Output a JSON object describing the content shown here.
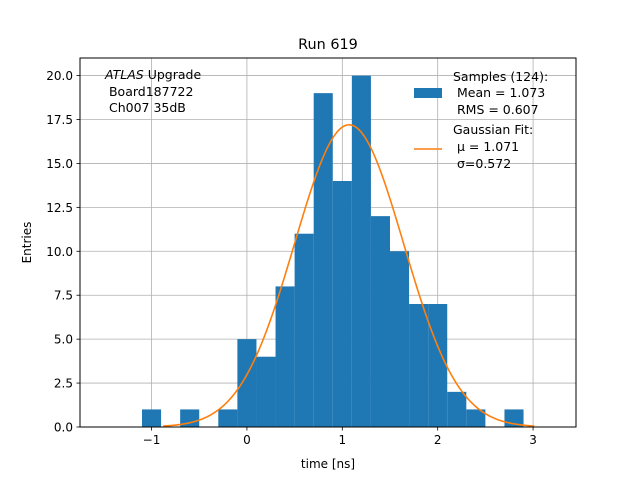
{
  "chart_data": {
    "type": "bar",
    "title": "Run 619",
    "xlabel": "time [ns]",
    "ylabel": "Entries",
    "xlim": [
      -1.75,
      3.45
    ],
    "ylim": [
      0,
      21
    ],
    "grid": true,
    "x_ticks": [
      -1,
      0,
      1,
      2,
      3
    ],
    "x_tick_labels": [
      "−1",
      "0",
      "1",
      "2",
      "3"
    ],
    "y_ticks": [
      0,
      2.5,
      5,
      7.5,
      10,
      12.5,
      15,
      17.5,
      20
    ],
    "y_tick_labels": [
      "0.0",
      "2.5",
      "5.0",
      "7.5",
      "10.0",
      "12.5",
      "15.0",
      "17.5",
      "20.0"
    ],
    "annotation": {
      "italic_part": "ATLAS",
      "rest_part": " Upgrade",
      "line2": " Board187722",
      "line3": " Ch007 35dB"
    },
    "legend_position": "upper right",
    "histogram": {
      "name": "Samples (124):",
      "stats": [
        " Mean = 1.073",
        " RMS = 0.607"
      ],
      "color": "#1f77b4",
      "bin_width": 0.2,
      "bin_starts": [
        -1.1,
        -0.7,
        -0.3,
        -0.1,
        0.1,
        0.3,
        0.5,
        0.7,
        0.9,
        1.1,
        1.3,
        1.5,
        1.7,
        1.9,
        2.1,
        2.3,
        2.5,
        2.7
      ],
      "counts": [
        1,
        1,
        1,
        5,
        4,
        8,
        11,
        19,
        14,
        20,
        12,
        10,
        7,
        7,
        2,
        1,
        0,
        1
      ]
    },
    "fit": {
      "name": "Gaussian Fit:",
      "stats": [
        " μ = 1.071",
        " σ=0.572"
      ],
      "color": "#ff7f0e",
      "amplitude": 17.2,
      "mu": 1.071,
      "sigma": 0.572,
      "x_range": [
        -1.3,
        3.3
      ]
    }
  }
}
